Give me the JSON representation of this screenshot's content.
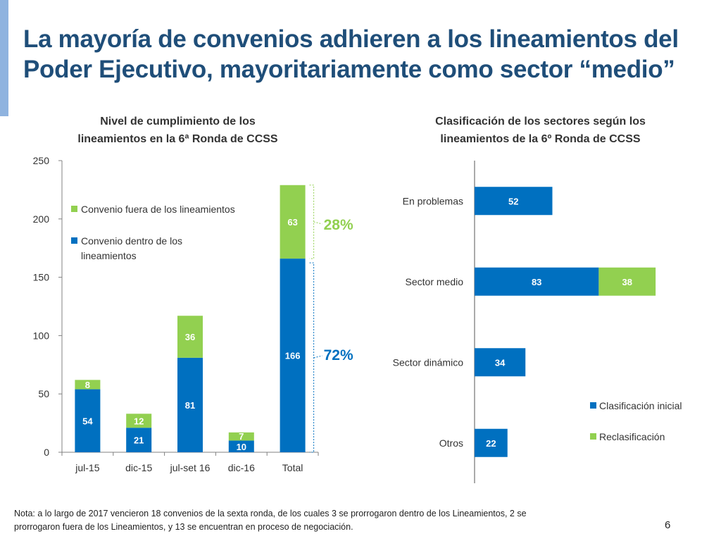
{
  "slide": {
    "title_line1": "La mayoría de convenios adhieren a los lineamientos del",
    "title_line2": "Poder Ejecutivo, mayoritariamente como sector “medio”",
    "footnote_line1": "Nota: a lo largo de 2017 vencieron 18 convenios de la sexta ronda, de los cuales 3 se prorrogaron dentro de los Lineamientos, 2 se",
    "footnote_line2": "prorrogaron fuera de los Lineamientos, y 13 se encuentran en proceso de negociación.",
    "page_number": "6"
  },
  "colors": {
    "blue": "#0070c0",
    "green": "#92d050",
    "title": "#1f4e79",
    "axis": "#808080"
  },
  "chart_data": [
    {
      "type": "bar",
      "stacked": true,
      "title_line1": "Nivel de cumplimiento de los",
      "title_line2": "lineamientos en la 6ª Ronda de CCSS",
      "categories": [
        "jul-15",
        "dic-15",
        "jul-set 16",
        "dic-16",
        "Total"
      ],
      "series": [
        {
          "name": "Convenio dentro de los lineamientos",
          "legend_line1": "Convenio dentro de los",
          "legend_line2": "lineamientos",
          "color": "#0070c0",
          "label_color": "#ffffff",
          "values": [
            54,
            21,
            81,
            10,
            166
          ]
        },
        {
          "name": "Convenio fuera de los lineamientos",
          "legend_line1": "Convenio fuera de los lineamientos",
          "color": "#92d050",
          "label_color": "#ffffff",
          "values": [
            8,
            12,
            36,
            7,
            63
          ]
        }
      ],
      "ylim": [
        0,
        250
      ],
      "yticks": [
        0,
        50,
        100,
        150,
        200,
        250
      ],
      "legend_position": "top-left",
      "annotations": [
        {
          "text": "28%",
          "color": "#92d050",
          "refers_to": "Convenio fuera de los lineamientos"
        },
        {
          "text": "72%",
          "color": "#0070c0",
          "refers_to": "Convenio dentro de los lineamientos"
        }
      ]
    },
    {
      "type": "bar",
      "orientation": "horizontal",
      "stacked": true,
      "title_line1": "Clasificación de los sectores según los",
      "title_line2": "lineamientos de la 6º Ronda de CCSS",
      "categories": [
        "En problemas",
        "Sector medio",
        "Sector dinámico",
        "Otros"
      ],
      "series": [
        {
          "name": "Clasificación inicial",
          "color": "#0070c0",
          "values": [
            52,
            83,
            34,
            22
          ]
        },
        {
          "name": "Reclasificación",
          "color": "#92d050",
          "values": [
            0,
            38,
            0,
            0
          ]
        }
      ],
      "xlim": [
        0,
        160
      ],
      "legend_position": "bottom-right"
    }
  ]
}
